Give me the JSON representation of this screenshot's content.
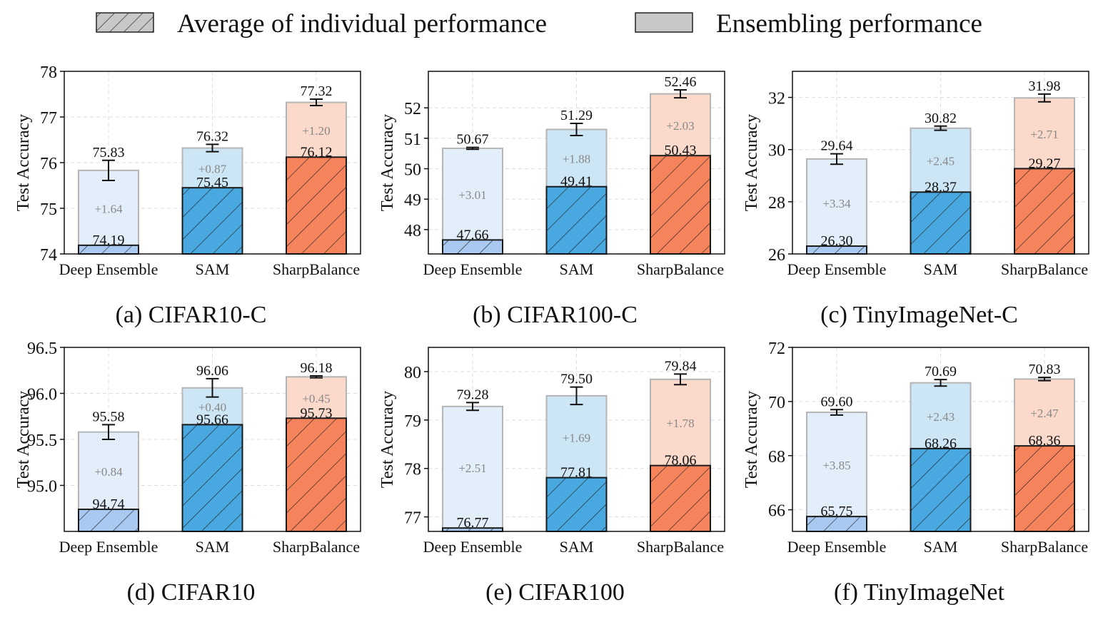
{
  "legend": {
    "individual_label": "Average of individual performance",
    "ensemble_label": "Ensembling performance"
  },
  "colors": {
    "deep_ensemble": "#a9c9f0",
    "deep_ensemble_light": "#e3eefb",
    "sam": "#4aa8e0",
    "sam_light": "#cde6f5",
    "sharpbalance": "#f5845c",
    "sharpbalance_light": "#fbd9cb",
    "legend_fill": "#c8c8c8",
    "grid": "#dddddd",
    "gain_text": "#888888"
  },
  "chart_data": [
    {
      "type": "bar",
      "caption": "(a) CIFAR10-C",
      "ylabel": "Test Accuracy",
      "categories": [
        "Deep Ensemble",
        "SAM",
        "SharpBalance"
      ],
      "ylim": [
        74,
        78
      ],
      "yticks": [
        74,
        75,
        76,
        77,
        78
      ],
      "ytick_labels": [
        "74",
        "75",
        "76",
        "77",
        "78"
      ],
      "individual": [
        74.19,
        75.45,
        76.12
      ],
      "individual_labels": [
        "74.19",
        "75.45",
        "76.12"
      ],
      "ensemble": [
        75.83,
        76.32,
        77.32
      ],
      "ensemble_labels": [
        "75.83",
        "76.32",
        "77.32"
      ],
      "gain_labels": [
        "+1.64",
        "+0.87",
        "+1.20"
      ],
      "ensemble_err": [
        0.22,
        0.08,
        0.07
      ],
      "grid": true
    },
    {
      "type": "bar",
      "caption": "(b) CIFAR100-C",
      "ylabel": "Test Accuracy",
      "categories": [
        "Deep Ensemble",
        "SAM",
        "SharpBalance"
      ],
      "ylim": [
        47.2,
        53.2
      ],
      "yticks": [
        48,
        49,
        50,
        51,
        52
      ],
      "ytick_labels": [
        "48",
        "49",
        "50",
        "51",
        "52"
      ],
      "individual": [
        47.66,
        49.41,
        50.43
      ],
      "individual_labels": [
        "47.66",
        "49.41",
        "50.43"
      ],
      "ensemble": [
        50.67,
        51.29,
        52.46
      ],
      "ensemble_labels": [
        "50.67",
        "51.29",
        "52.46"
      ],
      "gain_labels": [
        "+3.01",
        "+1.88",
        "+2.03"
      ],
      "ensemble_err": [
        0.03,
        0.2,
        0.13
      ],
      "grid": true
    },
    {
      "type": "bar",
      "caption": "(c) TinyImageNet-C",
      "ylabel": "Test Accuracy",
      "categories": [
        "Deep Ensemble",
        "SAM",
        "SharpBalance"
      ],
      "ylim": [
        26,
        33
      ],
      "yticks": [
        26,
        28,
        30,
        32
      ],
      "ytick_labels": [
        "26",
        "28",
        "30",
        "32"
      ],
      "individual": [
        26.3,
        28.37,
        29.27
      ],
      "individual_labels": [
        "26.30",
        "28.37",
        "29.27"
      ],
      "ensemble": [
        29.64,
        30.82,
        31.98
      ],
      "ensemble_labels": [
        "29.64",
        "30.82",
        "31.98"
      ],
      "gain_labels": [
        "+3.34",
        "+2.45",
        "+2.71"
      ],
      "ensemble_err": [
        0.2,
        0.08,
        0.15
      ],
      "grid": true
    },
    {
      "type": "bar",
      "caption": "(d) CIFAR10",
      "ylabel": "Test Accuracy",
      "categories": [
        "Deep Ensemble",
        "SAM",
        "SharpBalance"
      ],
      "ylim": [
        94.5,
        96.5
      ],
      "yticks": [
        95.0,
        95.5,
        96.0,
        96.5
      ],
      "ytick_labels": [
        "95.0",
        "95.5",
        "96.0",
        "96.5"
      ],
      "individual": [
        94.74,
        95.66,
        95.73
      ],
      "individual_labels": [
        "94.74",
        "95.66",
        "95.73"
      ],
      "ensemble": [
        95.58,
        96.06,
        96.18
      ],
      "ensemble_labels": [
        "95.58",
        "96.06",
        "96.18"
      ],
      "gain_labels": [
        "+0.84",
        "+0.40",
        "+0.45"
      ],
      "ensemble_err": [
        0.08,
        0.1,
        0.01
      ],
      "grid": true
    },
    {
      "type": "bar",
      "caption": "(e) CIFAR100",
      "ylabel": "Test Accuracy",
      "categories": [
        "Deep Ensemble",
        "SAM",
        "SharpBalance"
      ],
      "ylim": [
        76.7,
        80.5
      ],
      "yticks": [
        77,
        78,
        79,
        80
      ],
      "ytick_labels": [
        "77",
        "78",
        "79",
        "80"
      ],
      "individual": [
        76.77,
        77.81,
        78.06
      ],
      "individual_labels": [
        "76.77",
        "77.81",
        "78.06"
      ],
      "ensemble": [
        79.28,
        79.5,
        79.84
      ],
      "ensemble_labels": [
        "79.28",
        "79.50",
        "79.84"
      ],
      "gain_labels": [
        "+2.51",
        "+1.69",
        "+1.78"
      ],
      "ensemble_err": [
        0.08,
        0.18,
        0.11
      ],
      "grid": true
    },
    {
      "type": "bar",
      "caption": "(f) TinyImageNet",
      "ylabel": "Test Accuracy",
      "categories": [
        "Deep Ensemble",
        "SAM",
        "SharpBalance"
      ],
      "ylim": [
        65.2,
        72
      ],
      "yticks": [
        66,
        68,
        70,
        72
      ],
      "ytick_labels": [
        "66",
        "68",
        "70",
        "72"
      ],
      "individual": [
        65.75,
        68.26,
        68.36
      ],
      "individual_labels": [
        "65.75",
        "68.26",
        "68.36"
      ],
      "ensemble": [
        69.6,
        70.69,
        70.83
      ],
      "ensemble_labels": [
        "69.60",
        "70.69",
        "70.83"
      ],
      "gain_labels": [
        "+3.85",
        "+2.43",
        "+2.47"
      ],
      "ensemble_err": [
        0.1,
        0.12,
        0.06
      ],
      "grid": true
    }
  ]
}
